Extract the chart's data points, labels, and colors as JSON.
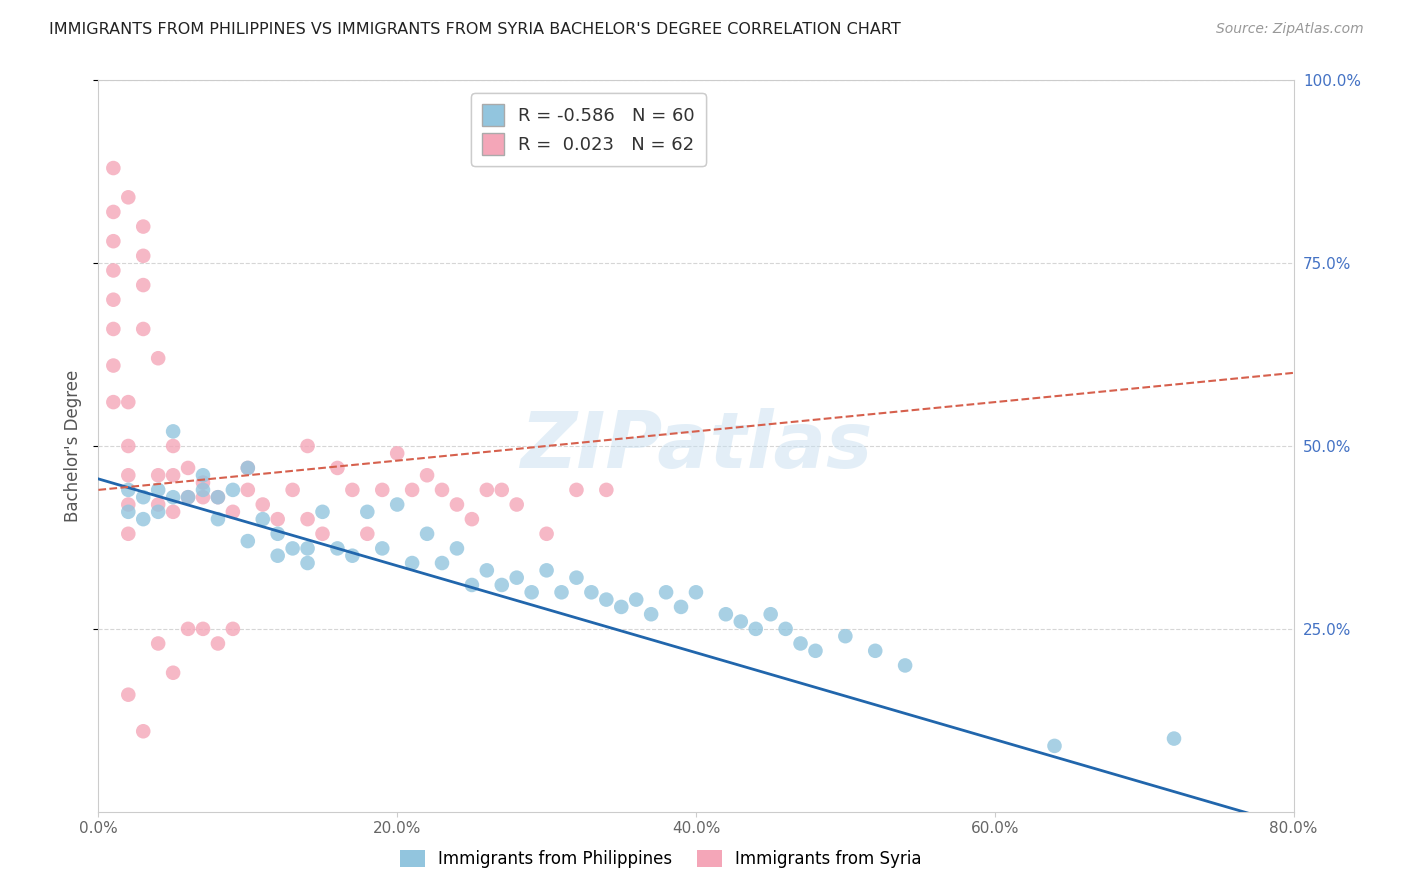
{
  "title": "IMMIGRANTS FROM PHILIPPINES VS IMMIGRANTS FROM SYRIA BACHELOR'S DEGREE CORRELATION CHART",
  "source": "Source: ZipAtlas.com",
  "ylabel": "Bachelor's Degree",
  "xlim": [
    0.0,
    0.8
  ],
  "ylim": [
    0.0,
    1.0
  ],
  "xtick_labels": [
    "0.0%",
    "20.0%",
    "40.0%",
    "60.0%",
    "80.0%"
  ],
  "xtick_values": [
    0.0,
    0.2,
    0.4,
    0.6,
    0.8
  ],
  "ytick_values": [
    0.25,
    0.5,
    0.75,
    1.0
  ],
  "right_ytick_labels": [
    "25.0%",
    "50.0%",
    "75.0%",
    "100.0%"
  ],
  "right_ytick_values": [
    0.25,
    0.5,
    0.75,
    1.0
  ],
  "philippines_color": "#92c5de",
  "syria_color": "#f4a6b8",
  "philippines_line_color": "#2166ac",
  "syria_line_color": "#d6604d",
  "philippines_R": -0.586,
  "philippines_N": 60,
  "syria_R": 0.023,
  "syria_N": 62,
  "watermark": "ZIPatlas",
  "background_color": "#ffffff",
  "grid_color": "#cccccc",
  "philippines_x": [
    0.02,
    0.02,
    0.03,
    0.03,
    0.04,
    0.04,
    0.05,
    0.05,
    0.06,
    0.07,
    0.07,
    0.08,
    0.08,
    0.09,
    0.1,
    0.1,
    0.11,
    0.12,
    0.12,
    0.13,
    0.14,
    0.14,
    0.15,
    0.16,
    0.17,
    0.18,
    0.19,
    0.2,
    0.21,
    0.22,
    0.23,
    0.24,
    0.25,
    0.26,
    0.27,
    0.28,
    0.29,
    0.3,
    0.31,
    0.32,
    0.33,
    0.34,
    0.35,
    0.36,
    0.37,
    0.38,
    0.39,
    0.4,
    0.42,
    0.43,
    0.44,
    0.45,
    0.46,
    0.47,
    0.48,
    0.5,
    0.52,
    0.54,
    0.64,
    0.72
  ],
  "philippines_y": [
    0.44,
    0.41,
    0.43,
    0.4,
    0.44,
    0.41,
    0.52,
    0.43,
    0.43,
    0.46,
    0.44,
    0.4,
    0.43,
    0.44,
    0.47,
    0.37,
    0.4,
    0.38,
    0.35,
    0.36,
    0.36,
    0.34,
    0.41,
    0.36,
    0.35,
    0.41,
    0.36,
    0.42,
    0.34,
    0.38,
    0.34,
    0.36,
    0.31,
    0.33,
    0.31,
    0.32,
    0.3,
    0.33,
    0.3,
    0.32,
    0.3,
    0.29,
    0.28,
    0.29,
    0.27,
    0.3,
    0.28,
    0.3,
    0.27,
    0.26,
    0.25,
    0.27,
    0.25,
    0.23,
    0.22,
    0.24,
    0.22,
    0.2,
    0.09,
    0.1
  ],
  "syria_x": [
    0.01,
    0.01,
    0.01,
    0.01,
    0.01,
    0.01,
    0.01,
    0.01,
    0.02,
    0.02,
    0.02,
    0.02,
    0.02,
    0.02,
    0.02,
    0.03,
    0.03,
    0.03,
    0.03,
    0.03,
    0.04,
    0.04,
    0.04,
    0.04,
    0.05,
    0.05,
    0.05,
    0.05,
    0.06,
    0.06,
    0.06,
    0.07,
    0.07,
    0.07,
    0.08,
    0.08,
    0.09,
    0.09,
    0.1,
    0.1,
    0.11,
    0.12,
    0.13,
    0.14,
    0.15,
    0.16,
    0.17,
    0.18,
    0.19,
    0.2,
    0.21,
    0.22,
    0.23,
    0.24,
    0.25,
    0.26,
    0.27,
    0.28,
    0.3,
    0.32,
    0.34,
    0.14
  ],
  "syria_y": [
    0.88,
    0.82,
    0.78,
    0.74,
    0.7,
    0.66,
    0.61,
    0.56,
    0.84,
    0.56,
    0.5,
    0.46,
    0.42,
    0.38,
    0.16,
    0.8,
    0.76,
    0.72,
    0.66,
    0.11,
    0.62,
    0.46,
    0.42,
    0.23,
    0.5,
    0.46,
    0.41,
    0.19,
    0.47,
    0.43,
    0.25,
    0.45,
    0.43,
    0.25,
    0.43,
    0.23,
    0.41,
    0.25,
    0.47,
    0.44,
    0.42,
    0.4,
    0.44,
    0.4,
    0.38,
    0.47,
    0.44,
    0.38,
    0.44,
    0.49,
    0.44,
    0.46,
    0.44,
    0.42,
    0.4,
    0.44,
    0.44,
    0.42,
    0.38,
    0.44,
    0.44,
    0.5
  ],
  "phil_trend_x0": 0.0,
  "phil_trend_y0": 0.455,
  "phil_trend_x1": 0.8,
  "phil_trend_y1": -0.02,
  "syria_trend_x0": 0.0,
  "syria_trend_y0": 0.44,
  "syria_trend_x1": 0.8,
  "syria_trend_y1": 0.6
}
